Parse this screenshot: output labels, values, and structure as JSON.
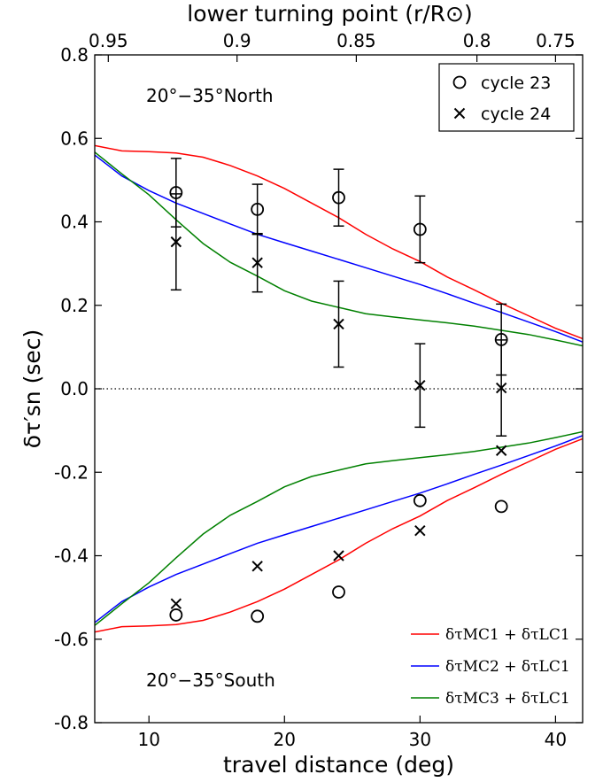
{
  "chart_data": {
    "type": "line",
    "xlabel": "travel distance (deg)",
    "ylabel": "δτ′sn (sec)",
    "top_xlabel": "lower turning point (r/R⊙)",
    "xlim": [
      6,
      42
    ],
    "ylim": [
      -0.8,
      0.8
    ],
    "x_ticks": [
      10,
      20,
      30,
      40
    ],
    "y_ticks": [
      {
        "value": 0.8,
        "label": "0.8"
      },
      {
        "value": 0.6,
        "label": "0.6"
      },
      {
        "value": 0.4,
        "label": "0.4"
      },
      {
        "value": 0.2,
        "label": "0.2"
      },
      {
        "value": 0.0,
        "label": "0.0"
      },
      {
        "value": -0.2,
        "label": "-0.2"
      },
      {
        "value": -0.4,
        "label": "-0.4"
      },
      {
        "value": -0.6,
        "label": "-0.6"
      },
      {
        "value": -0.8,
        "label": "-0.8"
      }
    ],
    "top_ticks": [
      {
        "x": 7.0,
        "label": "0.95"
      },
      {
        "x": 16.5,
        "label": "0.9"
      },
      {
        "x": 25.3,
        "label": "0.85"
      },
      {
        "x": 34.2,
        "label": "0.8"
      },
      {
        "x": 40.0,
        "label": "0.75"
      }
    ],
    "zero_line": true,
    "panel_labels": [
      {
        "text": "20°−35°North",
        "position": "upper-left"
      },
      {
        "text": "20°−35°South",
        "position": "lower-left"
      }
    ],
    "markers": [
      {
        "name": "cycle 23",
        "symbol": "circle",
        "north": {
          "x": [
            12,
            18,
            24,
            30,
            36
          ],
          "y": [
            0.47,
            0.43,
            0.458,
            0.382,
            0.118
          ],
          "err": [
            0.082,
            0.06,
            0.068,
            0.08,
            0.085
          ]
        },
        "south": {
          "x": [
            12,
            18,
            24,
            30,
            36
          ],
          "y": [
            -0.542,
            -0.545,
            -0.487,
            -0.268,
            -0.282
          ]
        }
      },
      {
        "name": "cycle 24",
        "symbol": "x",
        "north": {
          "x": [
            12,
            18,
            24,
            30,
            36
          ],
          "y": [
            0.352,
            0.302,
            0.155,
            0.008,
            0.002
          ],
          "err": [
            0.115,
            0.07,
            0.103,
            0.1,
            0.115
          ]
        },
        "south": {
          "x": [
            12,
            18,
            24,
            30,
            36
          ],
          "y": [
            -0.515,
            -0.425,
            -0.4,
            -0.34,
            -0.148
          ]
        }
      }
    ],
    "curves": [
      {
        "name": "δτMC1 + δτLC1",
        "color": "#ff0000",
        "x": [
          6,
          8,
          10,
          12,
          14,
          16,
          18,
          20,
          22,
          24,
          26,
          28,
          30,
          32,
          34,
          36,
          38,
          40,
          42
        ],
        "y": [
          0.583,
          0.57,
          0.568,
          0.565,
          0.555,
          0.535,
          0.51,
          0.48,
          0.445,
          0.41,
          0.37,
          0.335,
          0.305,
          0.268,
          0.237,
          0.205,
          0.175,
          0.145,
          0.12
        ],
        "mirrored": true
      },
      {
        "name": "δτMC2 + δτLC1",
        "color": "#0000ff",
        "x": [
          6,
          8,
          10,
          12,
          14,
          16,
          18,
          20,
          22,
          24,
          26,
          28,
          30,
          32,
          34,
          36,
          38,
          40,
          42
        ],
        "y": [
          0.56,
          0.51,
          0.475,
          0.445,
          0.42,
          0.395,
          0.37,
          0.35,
          0.33,
          0.31,
          0.29,
          0.27,
          0.25,
          0.228,
          0.205,
          0.183,
          0.16,
          0.137,
          0.112
        ],
        "mirrored": true
      },
      {
        "name": "δτMC3 + δτLC1",
        "color": "#008000",
        "x": [
          6,
          8,
          10,
          12,
          14,
          16,
          18,
          20,
          22,
          24,
          26,
          28,
          30,
          32,
          34,
          36,
          38,
          40,
          42
        ],
        "y": [
          0.567,
          0.515,
          0.465,
          0.405,
          0.348,
          0.303,
          0.27,
          0.235,
          0.21,
          0.195,
          0.18,
          0.172,
          0.165,
          0.158,
          0.15,
          0.14,
          0.13,
          0.117,
          0.103
        ],
        "mirrored": true
      }
    ],
    "legend_top": {
      "position": "top-right",
      "entries": [
        "cycle 23",
        "cycle 24"
      ]
    },
    "legend_bottom": {
      "position": "bottom-right",
      "entries": [
        "δτMC1 + δτLC1",
        "δτMC2 + δτLC1",
        "δτMC3 + δτLC1"
      ]
    }
  }
}
